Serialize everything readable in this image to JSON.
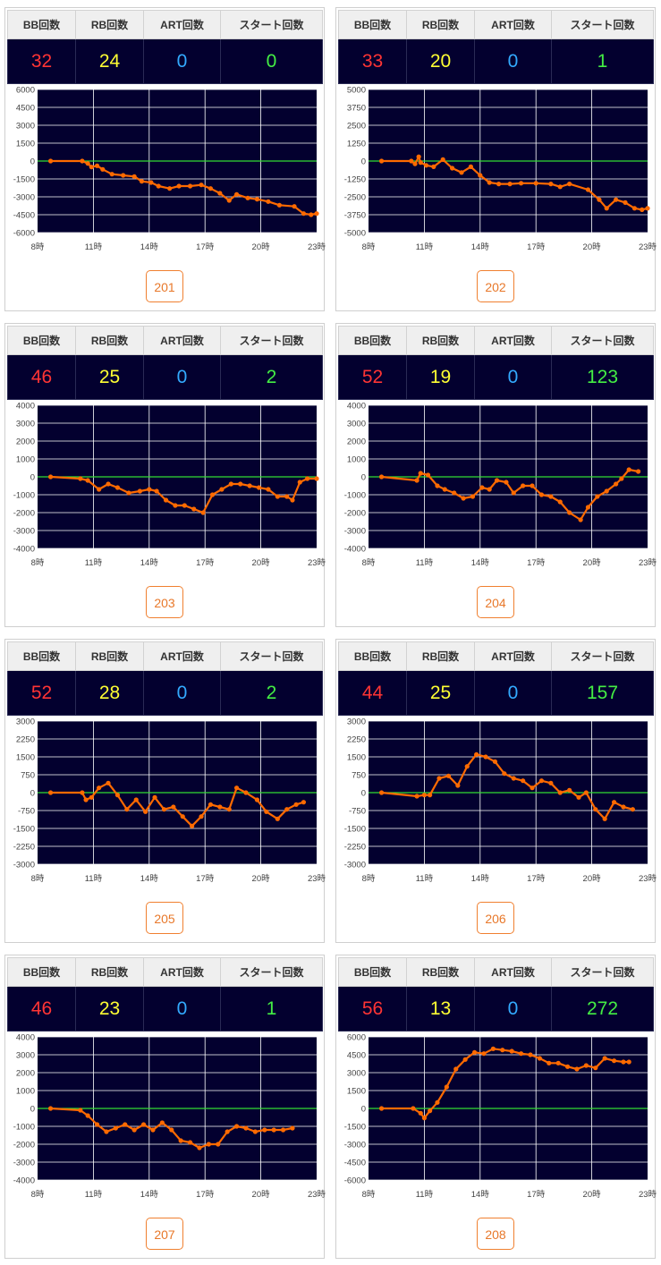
{
  "headers": {
    "bb": "BB回数",
    "rb": "RB回数",
    "art": "ART回数",
    "start": "スタート回数"
  },
  "colors": {
    "bb": "#ff3434",
    "rb": "#ffff33",
    "art": "#33aaff",
    "start": "#44ee44",
    "line": "#ff6a00",
    "zero_line": "#33dd33",
    "plot_bg": "#03002f",
    "button": "#e8782a"
  },
  "machines": [
    {
      "id": "201",
      "bb": "32",
      "rb": "24",
      "art": "0",
      "start": "0",
      "chart_data": {
        "type": "line",
        "x": [
          "8時",
          "11時",
          "14時",
          "17時",
          "20時",
          "23時"
        ],
        "y_ticks": [
          6000,
          4500,
          3000,
          1500,
          0,
          -1500,
          -3000,
          -4500,
          -6000
        ],
        "ylim": [
          -6000,
          6000
        ],
        "points": [
          [
            8.7,
            0
          ],
          [
            10.4,
            0
          ],
          [
            10.7,
            -200
          ],
          [
            10.9,
            -500
          ],
          [
            11.2,
            -400
          ],
          [
            11.5,
            -700
          ],
          [
            12.0,
            -1100
          ],
          [
            12.6,
            -1200
          ],
          [
            13.2,
            -1300
          ],
          [
            13.6,
            -1700
          ],
          [
            14.1,
            -1800
          ],
          [
            14.5,
            -2100
          ],
          [
            15.1,
            -2300
          ],
          [
            15.6,
            -2100
          ],
          [
            16.2,
            -2100
          ],
          [
            16.8,
            -2000
          ],
          [
            17.3,
            -2300
          ],
          [
            17.8,
            -2700
          ],
          [
            18.3,
            -3300
          ],
          [
            18.7,
            -2800
          ],
          [
            19.3,
            -3100
          ],
          [
            19.8,
            -3200
          ],
          [
            20.4,
            -3400
          ],
          [
            21.0,
            -3700
          ],
          [
            21.8,
            -3800
          ],
          [
            22.3,
            -4400
          ],
          [
            22.7,
            -4500
          ],
          [
            23.0,
            -4400
          ]
        ]
      }
    },
    {
      "id": "202",
      "bb": "33",
      "rb": "20",
      "art": "0",
      "start": "1",
      "chart_data": {
        "type": "line",
        "x": [
          "8時",
          "11時",
          "14時",
          "17時",
          "20時",
          "23時"
        ],
        "y_ticks": [
          5000,
          3750,
          2500,
          1250,
          0,
          -1250,
          -2500,
          -3750,
          -5000
        ],
        "ylim": [
          -5000,
          5000
        ],
        "points": [
          [
            8.7,
            0
          ],
          [
            10.3,
            0
          ],
          [
            10.5,
            -200
          ],
          [
            10.7,
            300
          ],
          [
            10.8,
            -100
          ],
          [
            11.1,
            -300
          ],
          [
            11.5,
            -400
          ],
          [
            12.0,
            100
          ],
          [
            12.5,
            -500
          ],
          [
            13.0,
            -800
          ],
          [
            13.5,
            -400
          ],
          [
            14.0,
            -1000
          ],
          [
            14.5,
            -1500
          ],
          [
            15.0,
            -1600
          ],
          [
            15.6,
            -1600
          ],
          [
            16.2,
            -1550
          ],
          [
            17.0,
            -1550
          ],
          [
            17.8,
            -1600
          ],
          [
            18.3,
            -1800
          ],
          [
            18.8,
            -1600
          ],
          [
            19.8,
            -2000
          ],
          [
            20.4,
            -2700
          ],
          [
            20.8,
            -3300
          ],
          [
            21.3,
            -2700
          ],
          [
            21.8,
            -2900
          ],
          [
            22.3,
            -3300
          ],
          [
            22.7,
            -3400
          ],
          [
            23.0,
            -3300
          ]
        ]
      }
    },
    {
      "id": "203",
      "bb": "46",
      "rb": "25",
      "art": "0",
      "start": "2",
      "chart_data": {
        "type": "line",
        "x": [
          "8時",
          "11時",
          "14時",
          "17時",
          "20時",
          "23時"
        ],
        "y_ticks": [
          4000,
          3000,
          2000,
          1000,
          0,
          -1000,
          -2000,
          -3000,
          -4000
        ],
        "ylim": [
          -4000,
          4000
        ],
        "points": [
          [
            8.7,
            0
          ],
          [
            10.3,
            -100
          ],
          [
            10.7,
            -200
          ],
          [
            11.3,
            -700
          ],
          [
            11.8,
            -400
          ],
          [
            12.3,
            -600
          ],
          [
            12.9,
            -900
          ],
          [
            13.5,
            -800
          ],
          [
            14.0,
            -700
          ],
          [
            14.4,
            -800
          ],
          [
            14.9,
            -1300
          ],
          [
            15.4,
            -1600
          ],
          [
            15.9,
            -1600
          ],
          [
            16.4,
            -1800
          ],
          [
            16.9,
            -2000
          ],
          [
            17.4,
            -1000
          ],
          [
            17.9,
            -700
          ],
          [
            18.4,
            -400
          ],
          [
            18.9,
            -400
          ],
          [
            19.4,
            -500
          ],
          [
            19.9,
            -600
          ],
          [
            20.4,
            -700
          ],
          [
            20.9,
            -1100
          ],
          [
            21.4,
            -1100
          ],
          [
            21.7,
            -1300
          ],
          [
            22.1,
            -300
          ],
          [
            22.5,
            -100
          ],
          [
            23.0,
            -100
          ]
        ]
      }
    },
    {
      "id": "204",
      "bb": "52",
      "rb": "19",
      "art": "0",
      "start": "123",
      "chart_data": {
        "type": "line",
        "x": [
          "8時",
          "11時",
          "14時",
          "17時",
          "20時",
          "23時"
        ],
        "y_ticks": [
          4000,
          3000,
          2000,
          1000,
          0,
          -1000,
          -2000,
          -3000,
          -4000
        ],
        "ylim": [
          -4000,
          4000
        ],
        "points": [
          [
            8.7,
            0
          ],
          [
            10.6,
            -200
          ],
          [
            10.8,
            200
          ],
          [
            11.2,
            100
          ],
          [
            11.7,
            -500
          ],
          [
            12.1,
            -700
          ],
          [
            12.6,
            -900
          ],
          [
            13.1,
            -1200
          ],
          [
            13.6,
            -1100
          ],
          [
            14.1,
            -600
          ],
          [
            14.5,
            -700
          ],
          [
            14.9,
            -200
          ],
          [
            15.4,
            -300
          ],
          [
            15.8,
            -900
          ],
          [
            16.3,
            -500
          ],
          [
            16.8,
            -500
          ],
          [
            17.3,
            -1000
          ],
          [
            17.8,
            -1100
          ],
          [
            18.3,
            -1400
          ],
          [
            18.8,
            -2000
          ],
          [
            19.4,
            -2400
          ],
          [
            19.8,
            -1700
          ],
          [
            20.3,
            -1100
          ],
          [
            20.8,
            -800
          ],
          [
            21.3,
            -400
          ],
          [
            21.6,
            -100
          ],
          [
            22.0,
            400
          ],
          [
            22.5,
            300
          ]
        ]
      }
    },
    {
      "id": "205",
      "bb": "52",
      "rb": "28",
      "art": "0",
      "start": "2",
      "chart_data": {
        "type": "line",
        "x": [
          "8時",
          "11時",
          "14時",
          "17時",
          "20時",
          "23時"
        ],
        "y_ticks": [
          3000,
          2250,
          1500,
          750,
          0,
          -750,
          -1500,
          -2250,
          -3000
        ],
        "ylim": [
          -3000,
          3000
        ],
        "points": [
          [
            8.7,
            0
          ],
          [
            10.4,
            0
          ],
          [
            10.6,
            -300
          ],
          [
            10.9,
            -200
          ],
          [
            11.3,
            200
          ],
          [
            11.8,
            400
          ],
          [
            12.3,
            -100
          ],
          [
            12.8,
            -700
          ],
          [
            13.3,
            -300
          ],
          [
            13.8,
            -800
          ],
          [
            14.3,
            -200
          ],
          [
            14.8,
            -700
          ],
          [
            15.3,
            -600
          ],
          [
            15.8,
            -1000
          ],
          [
            16.3,
            -1400
          ],
          [
            16.8,
            -1000
          ],
          [
            17.3,
            -500
          ],
          [
            17.8,
            -600
          ],
          [
            18.3,
            -700
          ],
          [
            18.7,
            200
          ],
          [
            19.2,
            0
          ],
          [
            19.8,
            -300
          ],
          [
            20.3,
            -800
          ],
          [
            20.9,
            -1100
          ],
          [
            21.4,
            -700
          ],
          [
            21.9,
            -500
          ],
          [
            22.3,
            -400
          ]
        ]
      }
    },
    {
      "id": "206",
      "bb": "44",
      "rb": "25",
      "art": "0",
      "start": "157",
      "chart_data": {
        "type": "line",
        "x": [
          "8時",
          "11時",
          "14時",
          "17時",
          "20時",
          "23時"
        ],
        "y_ticks": [
          3000,
          2250,
          1500,
          750,
          0,
          -750,
          -1500,
          -2250,
          -3000
        ],
        "ylim": [
          -3000,
          3000
        ],
        "points": [
          [
            8.7,
            0
          ],
          [
            10.6,
            -150
          ],
          [
            11.0,
            -100
          ],
          [
            11.3,
            -100
          ],
          [
            11.8,
            600
          ],
          [
            12.3,
            700
          ],
          [
            12.8,
            300
          ],
          [
            13.3,
            1100
          ],
          [
            13.8,
            1600
          ],
          [
            14.3,
            1500
          ],
          [
            14.8,
            1300
          ],
          [
            15.3,
            800
          ],
          [
            15.8,
            600
          ],
          [
            16.3,
            500
          ],
          [
            16.8,
            200
          ],
          [
            17.3,
            500
          ],
          [
            17.8,
            400
          ],
          [
            18.3,
            0
          ],
          [
            18.8,
            100
          ],
          [
            19.3,
            -200
          ],
          [
            19.7,
            0
          ],
          [
            20.2,
            -700
          ],
          [
            20.7,
            -1100
          ],
          [
            21.2,
            -400
          ],
          [
            21.7,
            -600
          ],
          [
            22.2,
            -700
          ]
        ]
      }
    },
    {
      "id": "207",
      "bb": "46",
      "rb": "23",
      "art": "0",
      "start": "1",
      "chart_data": {
        "type": "line",
        "x": [
          "8時",
          "11時",
          "14時",
          "17時",
          "20時",
          "23時"
        ],
        "y_ticks": [
          4000,
          3000,
          2000,
          1000,
          0,
          -1000,
          -2000,
          -3000,
          -4000
        ],
        "ylim": [
          -4000,
          4000
        ],
        "points": [
          [
            8.7,
            0
          ],
          [
            10.3,
            -100
          ],
          [
            10.7,
            -400
          ],
          [
            11.2,
            -900
          ],
          [
            11.7,
            -1300
          ],
          [
            12.2,
            -1100
          ],
          [
            12.7,
            -900
          ],
          [
            13.2,
            -1200
          ],
          [
            13.7,
            -900
          ],
          [
            14.2,
            -1200
          ],
          [
            14.7,
            -800
          ],
          [
            15.2,
            -1200
          ],
          [
            15.7,
            -1800
          ],
          [
            16.2,
            -1900
          ],
          [
            16.7,
            -2200
          ],
          [
            17.2,
            -2000
          ],
          [
            17.7,
            -2000
          ],
          [
            18.2,
            -1300
          ],
          [
            18.7,
            -1000
          ],
          [
            19.2,
            -1100
          ],
          [
            19.7,
            -1300
          ],
          [
            20.2,
            -1200
          ],
          [
            20.7,
            -1200
          ],
          [
            21.2,
            -1200
          ],
          [
            21.7,
            -1100
          ]
        ]
      }
    },
    {
      "id": "208",
      "bb": "56",
      "rb": "13",
      "art": "0",
      "start": "272",
      "chart_data": {
        "type": "line",
        "x": [
          "8時",
          "11時",
          "14時",
          "17時",
          "20時",
          "23時"
        ],
        "y_ticks": [
          6000,
          4500,
          3000,
          1500,
          0,
          -1500,
          -3000,
          -4500,
          -6000
        ],
        "ylim": [
          -6000,
          6000
        ],
        "points": [
          [
            8.7,
            0
          ],
          [
            10.4,
            0
          ],
          [
            10.8,
            -400
          ],
          [
            11.0,
            -800
          ],
          [
            11.3,
            -200
          ],
          [
            11.7,
            500
          ],
          [
            12.2,
            1800
          ],
          [
            12.7,
            3300
          ],
          [
            13.2,
            4100
          ],
          [
            13.7,
            4700
          ],
          [
            14.2,
            4600
          ],
          [
            14.7,
            5000
          ],
          [
            15.2,
            4900
          ],
          [
            15.7,
            4800
          ],
          [
            16.2,
            4600
          ],
          [
            16.7,
            4500
          ],
          [
            17.2,
            4200
          ],
          [
            17.7,
            3800
          ],
          [
            18.2,
            3800
          ],
          [
            18.7,
            3500
          ],
          [
            19.2,
            3300
          ],
          [
            19.7,
            3600
          ],
          [
            20.2,
            3400
          ],
          [
            20.7,
            4200
          ],
          [
            21.2,
            4000
          ],
          [
            21.7,
            3900
          ],
          [
            22.0,
            3900
          ]
        ]
      }
    }
  ]
}
